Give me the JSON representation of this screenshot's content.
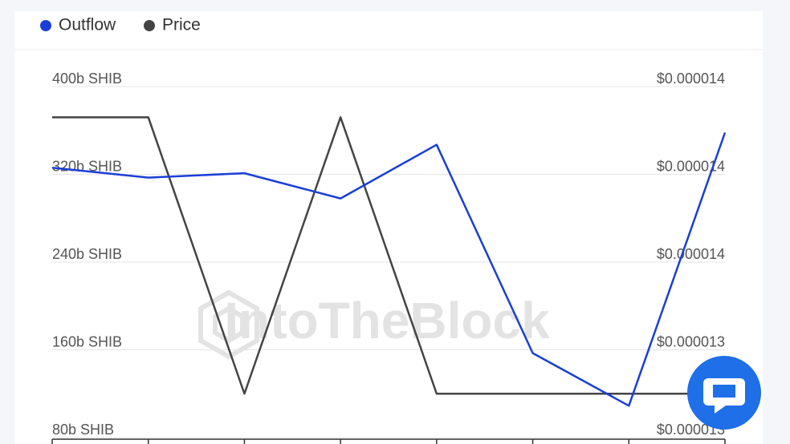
{
  "chart_data": {
    "type": "line",
    "watermark": "IntoTheBlock",
    "categories": [
      null,
      null,
      null,
      null,
      null,
      null,
      null,
      null
    ],
    "series": [
      {
        "name": "Outflow",
        "color": "#1a3fd6",
        "values": [
          326,
          317,
          321,
          298,
          347,
          157,
          109,
          358
        ]
      },
      {
        "name": "Price",
        "color": "#444444",
        "axis": "y2",
        "values": [
          1.393e-05,
          1.393e-05,
          1.33e-05,
          1.393e-05,
          1.33e-05,
          1.33e-05,
          1.33e-05,
          1.33e-05
        ]
      }
    ],
    "ylim": [
      80,
      400
    ],
    "yticks": [
      {
        "value": 80,
        "label": "80b SHIB"
      },
      {
        "value": 160,
        "label": "160b SHIB"
      },
      {
        "value": 240,
        "label": "240b SHIB"
      },
      {
        "value": 320,
        "label": "320b SHIB"
      },
      {
        "value": 400,
        "label": "400b SHIB"
      }
    ],
    "y2lim": [
      1.32e-05,
      1.4e-05
    ],
    "y2ticks": [
      {
        "value": 1.32e-05,
        "label": "$0.000013"
      },
      {
        "value": 1.34e-05,
        "label": "$0.000013"
      },
      {
        "value": 1.36e-05,
        "label": "$0.000014"
      },
      {
        "value": 1.38e-05,
        "label": "$0.000014"
      },
      {
        "value": 1.4e-05,
        "label": "$0.000014"
      }
    ],
    "grid": true
  }
}
